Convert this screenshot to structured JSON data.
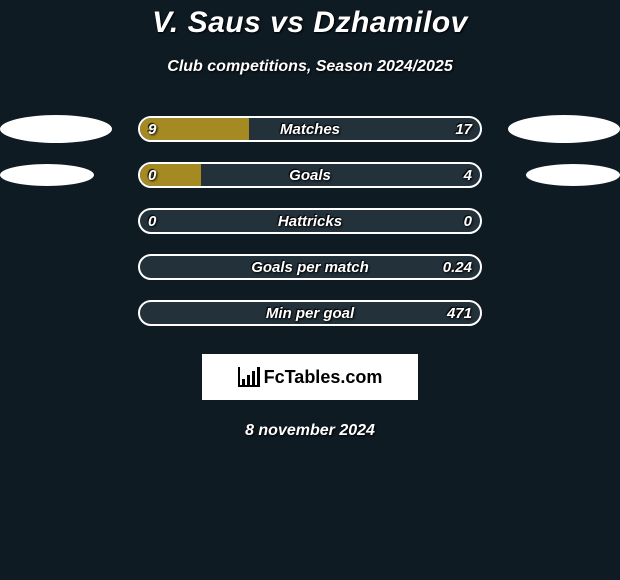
{
  "background_color": "#0f1b23",
  "fill_color": "#a58a24",
  "bar_bg_color": "#23313a",
  "border_color": "#ffffff",
  "text_color": "#ffffff",
  "title": "V. Saus vs Dzhamilov",
  "subtitle": "Club competitions, Season 2024/2025",
  "date": "8 november 2024",
  "logo_text": "FcTables.com",
  "ovals": {
    "row0": {
      "left_w": 112,
      "left_h": 28,
      "right_w": 112,
      "right_h": 28
    },
    "row1": {
      "left_w": 94,
      "left_h": 22,
      "right_w": 94,
      "right_h": 22
    }
  },
  "rows": [
    {
      "label": "Matches",
      "left_val": "9",
      "right_val": "17",
      "fill_pct": 32
    },
    {
      "label": "Goals",
      "left_val": "0",
      "right_val": "4",
      "fill_pct": 18
    },
    {
      "label": "Hattricks",
      "left_val": "0",
      "right_val": "0",
      "fill_pct": 0
    },
    {
      "label": "Goals per match",
      "left_val": "",
      "right_val": "0.24",
      "fill_pct": 0
    },
    {
      "label": "Min per goal",
      "left_val": "",
      "right_val": "471",
      "fill_pct": 0
    }
  ]
}
